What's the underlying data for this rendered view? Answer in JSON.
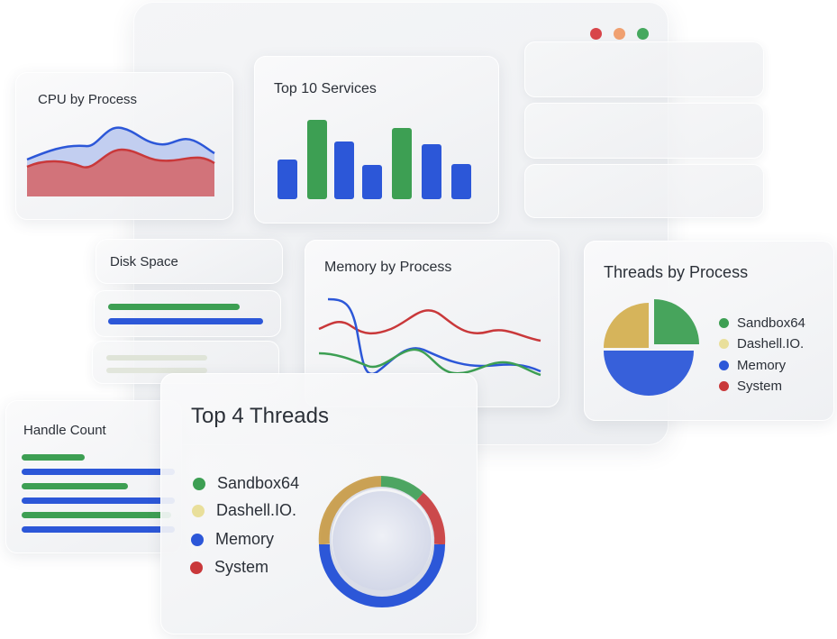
{
  "colors": {
    "red": "#c9383a",
    "blue": "#2c57d8",
    "green": "#3d9f53",
    "yellow": "#e9df9b",
    "gold": "#d4b052",
    "window_close": "#d8454a",
    "window_minimize": "#f0a070",
    "window_maximize": "#45a85e"
  },
  "window_controls": [
    "close",
    "minimize",
    "maximize"
  ],
  "cpu_card": {
    "title": "CPU by Process"
  },
  "services_card": {
    "title": "Top 10 Services"
  },
  "disk_card": {
    "title": "Disk Space"
  },
  "memory_card": {
    "title": "Memory by Process"
  },
  "threads_card": {
    "title": "Threads by Process",
    "legend": [
      {
        "label": "Sandbox64",
        "color": "#3d9f53"
      },
      {
        "label": "Dashell.IO.",
        "color": "#e9df9b"
      },
      {
        "label": "Memory",
        "color": "#2c57d8"
      },
      {
        "label": "System",
        "color": "#c9383a"
      }
    ]
  },
  "handle_card": {
    "title": "Handle Count"
  },
  "top4_card": {
    "title": "Top 4 Threads",
    "legend": [
      {
        "label": "Sandbox64",
        "color": "#3d9f53"
      },
      {
        "label": "Dashell.IO.",
        "color": "#e9df9b"
      },
      {
        "label": "Memory",
        "color": "#2c57d8"
      },
      {
        "label": "System",
        "color": "#c9383a"
      }
    ]
  }
}
